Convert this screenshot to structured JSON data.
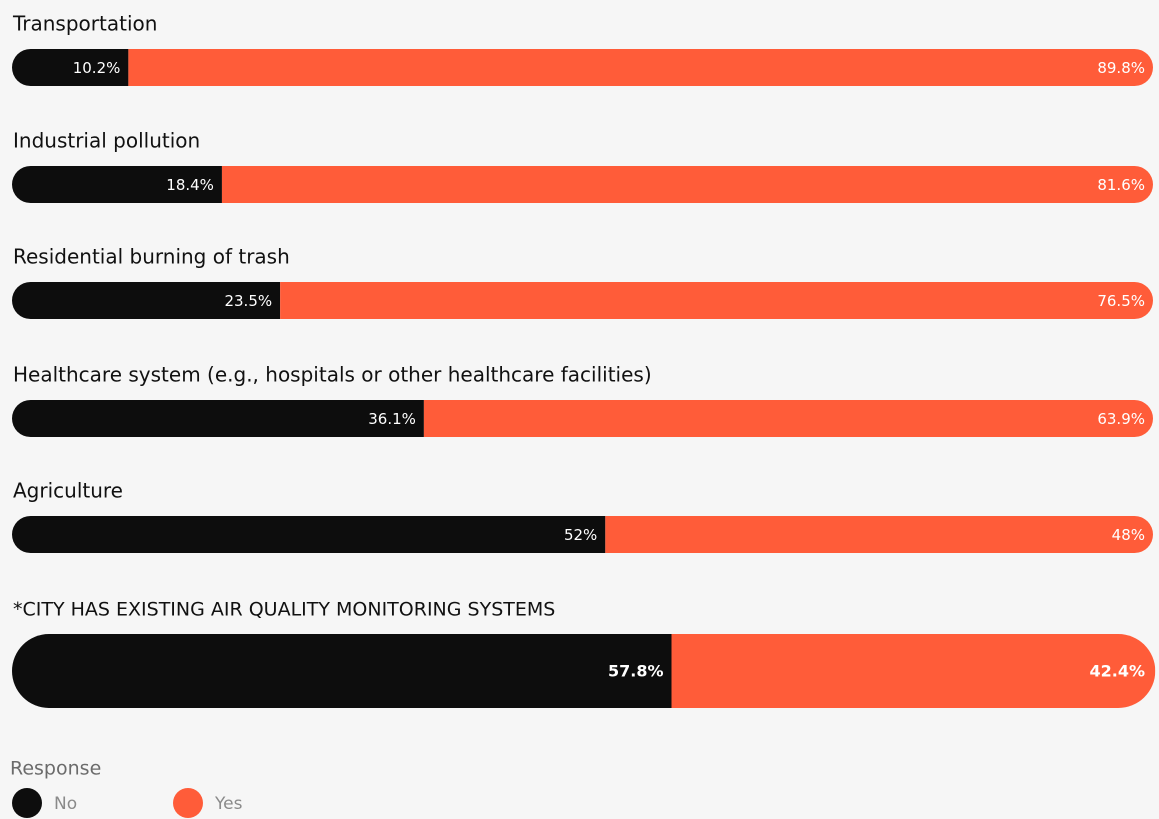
{
  "chart_data": {
    "type": "bar",
    "orientation": "horizontal",
    "stacked": true,
    "categories": [
      "Transportation",
      "Industrial pollution",
      "Residential burning of trash",
      "Healthcare system (e.g., hospitals or other healthcare facilities)",
      "Agriculture",
      "*CITY HAS EXISTING AIR QUALITY MONITORING SYSTEMS"
    ],
    "series": [
      {
        "name": "No",
        "color": "#0d0d0d",
        "values": [
          10.2,
          18.4,
          23.5,
          36.1,
          52,
          57.8
        ],
        "value_labels": [
          "10.2%",
          "18.4%",
          "23.5%",
          "36.1%",
          "52%",
          "57.8%"
        ]
      },
      {
        "name": "Yes",
        "color": "#ff5c39",
        "values": [
          89.8,
          81.6,
          76.5,
          63.9,
          48,
          42.4
        ],
        "value_labels": [
          "89.8%",
          "81.6%",
          "76.5%",
          "63.9%",
          "48%",
          "42.4%"
        ]
      }
    ],
    "xlim": [
      0,
      100
    ],
    "legend": {
      "title": "Response",
      "position": "bottom-left"
    }
  }
}
